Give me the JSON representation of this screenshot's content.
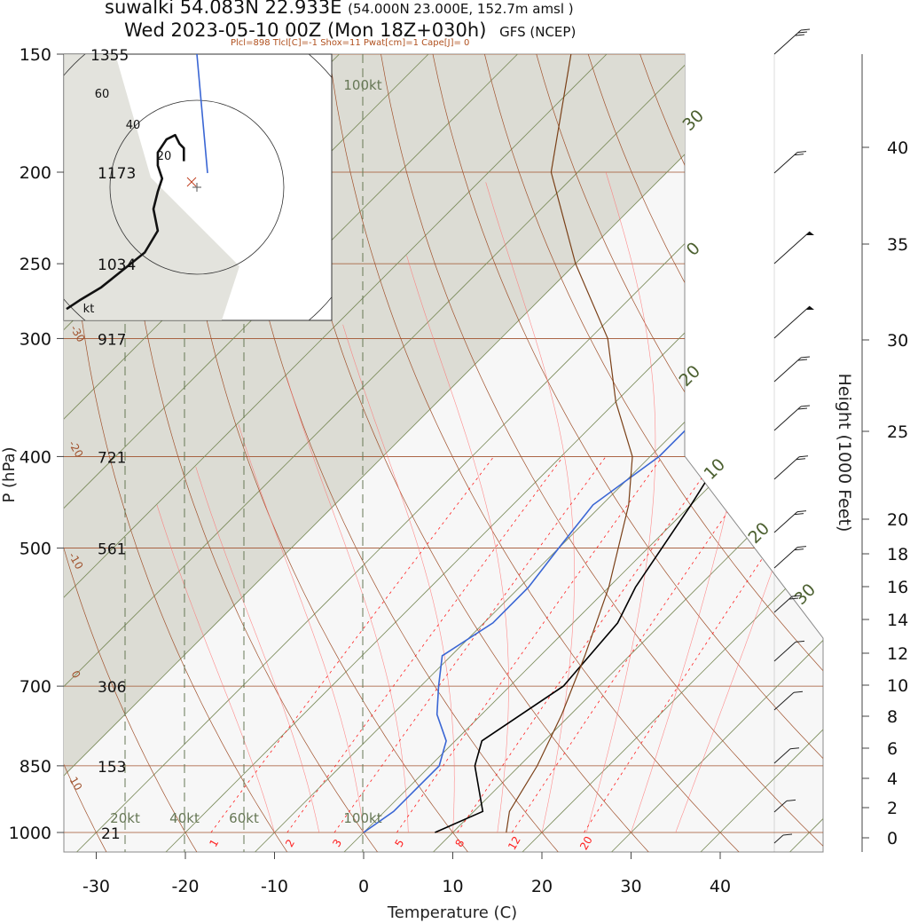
{
  "header": {
    "station": "suwalki 54.083N 22.933E",
    "grid_point": "(54.000N 23.000E, 152.7m amsl )",
    "valid": "Wed 2023-05-10 00Z (Mon 18Z+030h)",
    "model": "GFS (NCEP)",
    "indices": "Plcl=898 Tlcl[C]=-1 Shox=11 Pwat[cm]=1 Cape[J]= 0"
  },
  "colors": {
    "temperature": "#000000",
    "dewpoint": "#3a66d4",
    "dry_adiabat": "#a0522d",
    "moist_adiabat": "#ff7070",
    "isotherm": "#7a8a5a",
    "mixing_ratio": "#ff2020",
    "shading": "#dcdcd4"
  },
  "chart_data": [
    {
      "type": "line",
      "title": "Skew-T log-P",
      "xlabel": "Temperature (C)",
      "ylabel": "P (hPa)",
      "ylabel_right": "Height (1000 Feet)",
      "x_ticks": [
        "-30",
        "-20",
        "-10",
        "0",
        "10",
        "20",
        "30",
        "40"
      ],
      "xlim": [
        -33,
        46
      ],
      "ylim": [
        1000,
        150
      ],
      "pressure_levels": [
        {
          "p": 150,
          "label": "150",
          "height_m": "1355"
        },
        {
          "p": 200,
          "label": "200",
          "height_m": "1173"
        },
        {
          "p": 250,
          "label": "250",
          "height_m": "1034"
        },
        {
          "p": 300,
          "label": "300",
          "height_m": "917"
        },
        {
          "p": 400,
          "label": "400",
          "height_m": "721"
        },
        {
          "p": 500,
          "label": "500",
          "height_m": "561"
        },
        {
          "p": 700,
          "label": "700",
          "height_m": "306"
        },
        {
          "p": 850,
          "label": "850",
          "height_m": "153"
        },
        {
          "p": 1000,
          "label": "1000",
          "height_m": "21"
        }
      ],
      "height_ticks_kft": [
        "0",
        "2",
        "4",
        "6",
        "8",
        "10",
        "12",
        "14",
        "16",
        "18",
        "20",
        "25",
        "30",
        "35",
        "40"
      ],
      "series": [
        {
          "name": "temperature",
          "points": [
            [
              8,
              1000
            ],
            [
              11,
              950
            ],
            [
              5,
              850
            ],
            [
              3,
              800
            ],
            [
              6,
              700
            ],
            [
              5,
              600
            ],
            [
              3,
              550
            ],
            [
              0,
              450
            ],
            [
              -2,
              400
            ],
            [
              -5,
              350
            ],
            [
              -8,
              300
            ],
            [
              -13,
              250
            ],
            [
              -6,
              200
            ],
            [
              3,
              150
            ]
          ]
        },
        {
          "name": "dewpoint",
          "points": [
            [
              0,
              1000
            ],
            [
              1,
              950
            ],
            [
              1,
              850
            ],
            [
              -1,
              800
            ],
            [
              -5,
              750
            ],
            [
              -8,
              700
            ],
            [
              -11,
              650
            ],
            [
              -9,
              600
            ],
            [
              -9,
              550
            ],
            [
              -10,
              500
            ],
            [
              -11,
              450
            ],
            [
              -9,
              400
            ],
            [
              -9,
              350
            ],
            [
              -10,
              300
            ],
            [
              -15,
              250
            ],
            [
              -23,
              200
            ],
            [
              -25,
              150
            ]
          ]
        },
        {
          "name": "parcel",
          "points": [
            [
              16,
              1000
            ],
            [
              14,
              950
            ],
            [
              12,
              850
            ],
            [
              9,
              750
            ],
            [
              5,
              650
            ],
            [
              0,
              550
            ],
            [
              -7,
              450
            ],
            [
              -12,
              400
            ],
            [
              -20,
              350
            ],
            [
              -28,
              300
            ],
            [
              -40,
              250
            ],
            [
              -53,
              200
            ],
            [
              -64,
              150
            ]
          ]
        }
      ],
      "isotherm_labels": [
        "-30",
        "-20",
        "-10",
        "0",
        "10",
        "20",
        "30",
        "0",
        "10",
        "20"
      ],
      "mixing_ratio_labels": [
        "1",
        "2",
        "3",
        "5",
        "8",
        "12",
        "20"
      ],
      "windbarb_scale_labels": [
        "20kt",
        "40kt",
        "60kt",
        "100kt"
      ]
    },
    {
      "type": "scatter",
      "title": "hodograph",
      "units": "kt",
      "ring_labels": [
        "20",
        "40",
        "60"
      ],
      "points": [
        [
          -30,
          -28
        ],
        [
          -27,
          -26
        ],
        [
          -22,
          -23
        ],
        [
          -17,
          -19
        ],
        [
          -12,
          -15
        ],
        [
          -9,
          -10
        ],
        [
          -10,
          -5
        ],
        [
          -9,
          -1
        ],
        [
          -8,
          2
        ],
        [
          -9,
          5
        ],
        [
          -9,
          8
        ],
        [
          -7,
          11
        ],
        [
          -5,
          12
        ],
        [
          -4,
          10
        ],
        [
          -3,
          9
        ],
        [
          -3,
          6
        ]
      ]
    }
  ]
}
